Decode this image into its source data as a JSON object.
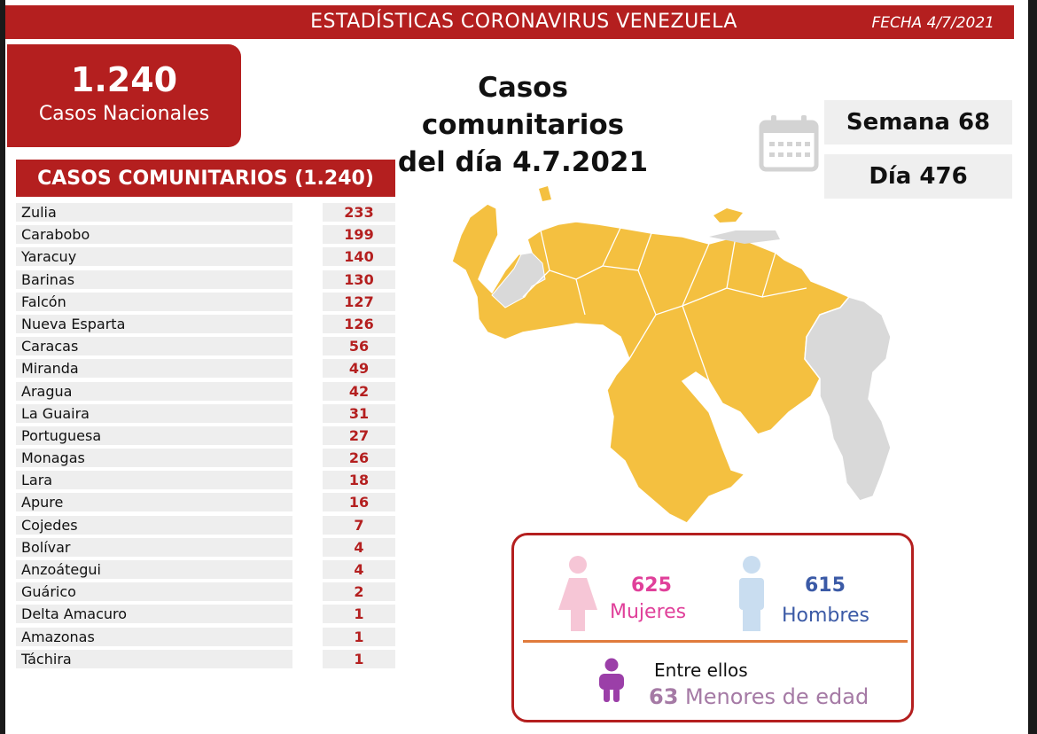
{
  "header": {
    "title": "ESTADÍSTICAS CORONAVIRUS VENEZUELA",
    "date": "FECHA 4/7/2021"
  },
  "national": {
    "count": "1.240",
    "label": "Casos Nacionales"
  },
  "headline": {
    "line1": "Casos comunitarios",
    "line2": "del día 4.7.2021"
  },
  "info": {
    "week": "Semana 68",
    "day": "Día 476"
  },
  "table": {
    "title": "CASOS COMUNITARIOS (1.240)",
    "rows": [
      {
        "name": "Zulia",
        "value": "233"
      },
      {
        "name": "Carabobo",
        "value": "199"
      },
      {
        "name": "Yaracuy",
        "value": "140"
      },
      {
        "name": "Barinas",
        "value": "130"
      },
      {
        "name": "Falcón",
        "value": "127"
      },
      {
        "name": "Nueva Esparta",
        "value": "126"
      },
      {
        "name": "Caracas",
        "value": "56"
      },
      {
        "name": "Miranda",
        "value": "49"
      },
      {
        "name": "Aragua",
        "value": "42"
      },
      {
        "name": "La Guaira",
        "value": "31"
      },
      {
        "name": "Portuguesa",
        "value": "27"
      },
      {
        "name": "Monagas",
        "value": "26"
      },
      {
        "name": "Lara",
        "value": "18"
      },
      {
        "name": "Apure",
        "value": "16"
      },
      {
        "name": "Cojedes",
        "value": "7"
      },
      {
        "name": "Bolívar",
        "value": "4"
      },
      {
        "name": "Anzoátegui",
        "value": "4"
      },
      {
        "name": "Guárico",
        "value": "2"
      },
      {
        "name": "Delta Amacuro",
        "value": "1"
      },
      {
        "name": "Amazonas",
        "value": "1"
      },
      {
        "name": "Táchira",
        "value": "1"
      }
    ]
  },
  "gender": {
    "women_count": "625",
    "women_label": "Mujeres",
    "men_count": "615",
    "men_label": "Hombres",
    "minors_intro": "Entre ellos",
    "minors_count": "63",
    "minors_label": "Menores de edad"
  },
  "colors": {
    "brand_red": "#b41f1f",
    "map_yellow": "#f4c040",
    "map_gray": "#d9d9d9",
    "women_pink": "#e0409a",
    "men_blue": "#3b5aa6",
    "minor_purple": "#9b3fa8"
  }
}
